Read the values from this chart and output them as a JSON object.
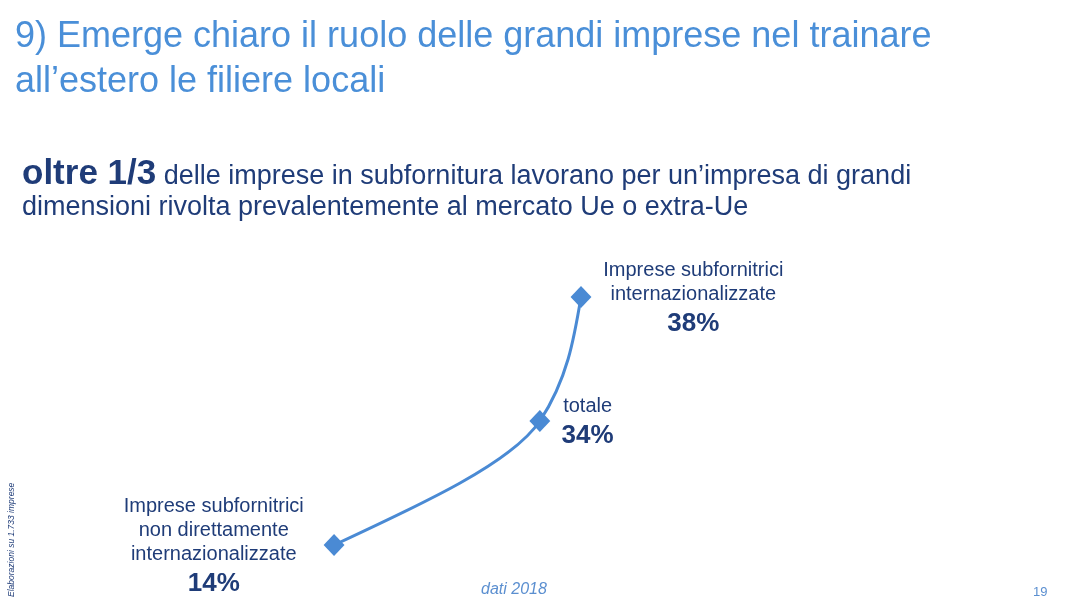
{
  "chart_data": {
    "type": "other",
    "title": "9) Emerge chiaro il ruolo delle grandi imprese nel trainare all’estero le filiere locali",
    "subtitle": "oltre 1/3 delle imprese in subfornitura lavorano per un’impresa di grandi dimensioni rivolta prevalentemente al mercato Ue o extra-Ue",
    "categories": [
      "Imprese subfornitrici internazionalizzate",
      "totale",
      "Imprese subfornitrici non direttamente internazionalizzate"
    ],
    "values": [
      38,
      34,
      14
    ],
    "value_labels": [
      "38%",
      "34%",
      "14%"
    ],
    "color": "#4a8ad4",
    "annotations": [
      "Elaborazioni su 1.733 imprese",
      "dati 2018",
      "19"
    ]
  }
}
